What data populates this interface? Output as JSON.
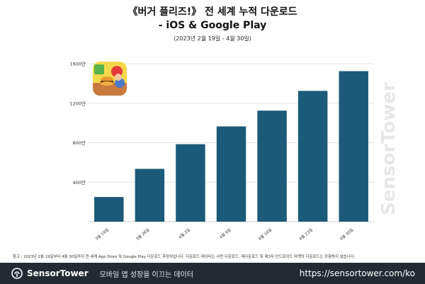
{
  "header": {
    "title_line1": "《버거 플리즈!》 전 세계 누적 다운로드",
    "title_line2": "- iOS & Google Play",
    "period": "(2023년 2월 19일 - 4월 30일)"
  },
  "chart_data": {
    "type": "bar",
    "title": "《버거 플리즈!》 전 세계 누적 다운로드 - iOS & Google Play",
    "subtitle": "(2023년 2월 19일 - 4월 30일)",
    "categories": [
      "3월 19일",
      "3월 26일",
      "4월 2일",
      "4월 9일",
      "4월 16일",
      "4월 23일",
      "4월 30일"
    ],
    "values": [
      250,
      535,
      785,
      965,
      1125,
      1325,
      1525
    ],
    "yticks": [
      400,
      800,
      1200,
      1600
    ],
    "ytick_labels": [
      "400만",
      "800만",
      "1200만",
      "1600만"
    ],
    "ylim": [
      0,
      1600
    ],
    "bar_color": "#1b5a78",
    "grid": true,
    "legend": "none"
  },
  "footnote": "참고 : 2023년 2월 19일부터 4월 30일까지 전 세계 App Store 및 Google Play 다운로드 추정치입니다. 다운로드 데이터는 사전 다운로드, 재다운로드 및 제3자 안드로이드 마켓의 다운로드는 포함하지 않습니다.",
  "footer": {
    "brand": "SensorTower",
    "tagline": "모바일 앱 성장을 이끄는 데이터",
    "url": "https://sensortower.com/ko",
    "background": "#232a34"
  },
  "watermark": "SensorTower",
  "icons": {
    "app": "burger-please-app-icon",
    "logo": "sensor-tower-logo-icon"
  }
}
